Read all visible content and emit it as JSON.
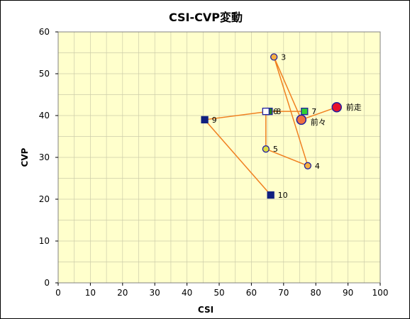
{
  "chart_data": {
    "type": "scatter",
    "title": "CSI-CVP変動",
    "xlabel": "CSI",
    "ylabel": "CVP",
    "xlim": [
      0,
      100
    ],
    "ylim": [
      0,
      60
    ],
    "xticks": [
      "0",
      "10",
      "20",
      "30",
      "40",
      "50",
      "60",
      "70",
      "80",
      "90",
      "100"
    ],
    "yticks": [
      "0",
      "10",
      "20",
      "30",
      "40",
      "50",
      "60"
    ],
    "grid": true,
    "plot_background": "#FFFFCC",
    "grid_color": "#CCCCAA",
    "line_color": "#F08020",
    "points": [
      {
        "label": "前走",
        "x": 86.5,
        "y": 42,
        "marker": "circle-large",
        "fill": "#E8102A",
        "stroke": "#2020A0"
      },
      {
        "label": "前々",
        "x": 75.5,
        "y": 39,
        "marker": "circle-large",
        "fill": "#F07040",
        "stroke": "#2020A0"
      },
      {
        "label": "3",
        "x": 67,
        "y": 54,
        "marker": "circle",
        "fill": "#F8B040",
        "stroke": "#2020A0"
      },
      {
        "label": "4",
        "x": 77.5,
        "y": 28,
        "marker": "circle",
        "fill": "#F8B040",
        "stroke": "#2020A0"
      },
      {
        "label": "5",
        "x": 64.5,
        "y": 32,
        "marker": "circle",
        "fill": "#DDDD40",
        "stroke": "#2020A0"
      },
      {
        "label": "6",
        "x": 64.5,
        "y": 41,
        "marker": "square",
        "fill": "#FFFFFF",
        "stroke": "#2020A0"
      },
      {
        "label": "7",
        "x": 76.5,
        "y": 41,
        "marker": "square",
        "fill": "#30D030",
        "stroke": "#2020A0"
      },
      {
        "label": "8",
        "x": 65.5,
        "y": 41,
        "marker": "square",
        "fill": "#208020",
        "stroke": "#2020A0"
      },
      {
        "label": "9",
        "x": 45.5,
        "y": 39,
        "marker": "square",
        "fill": "#102080",
        "stroke": "#102080"
      },
      {
        "label": "10",
        "x": 66,
        "y": 21,
        "marker": "square",
        "fill": "#102080",
        "stroke": "#102080"
      }
    ]
  }
}
